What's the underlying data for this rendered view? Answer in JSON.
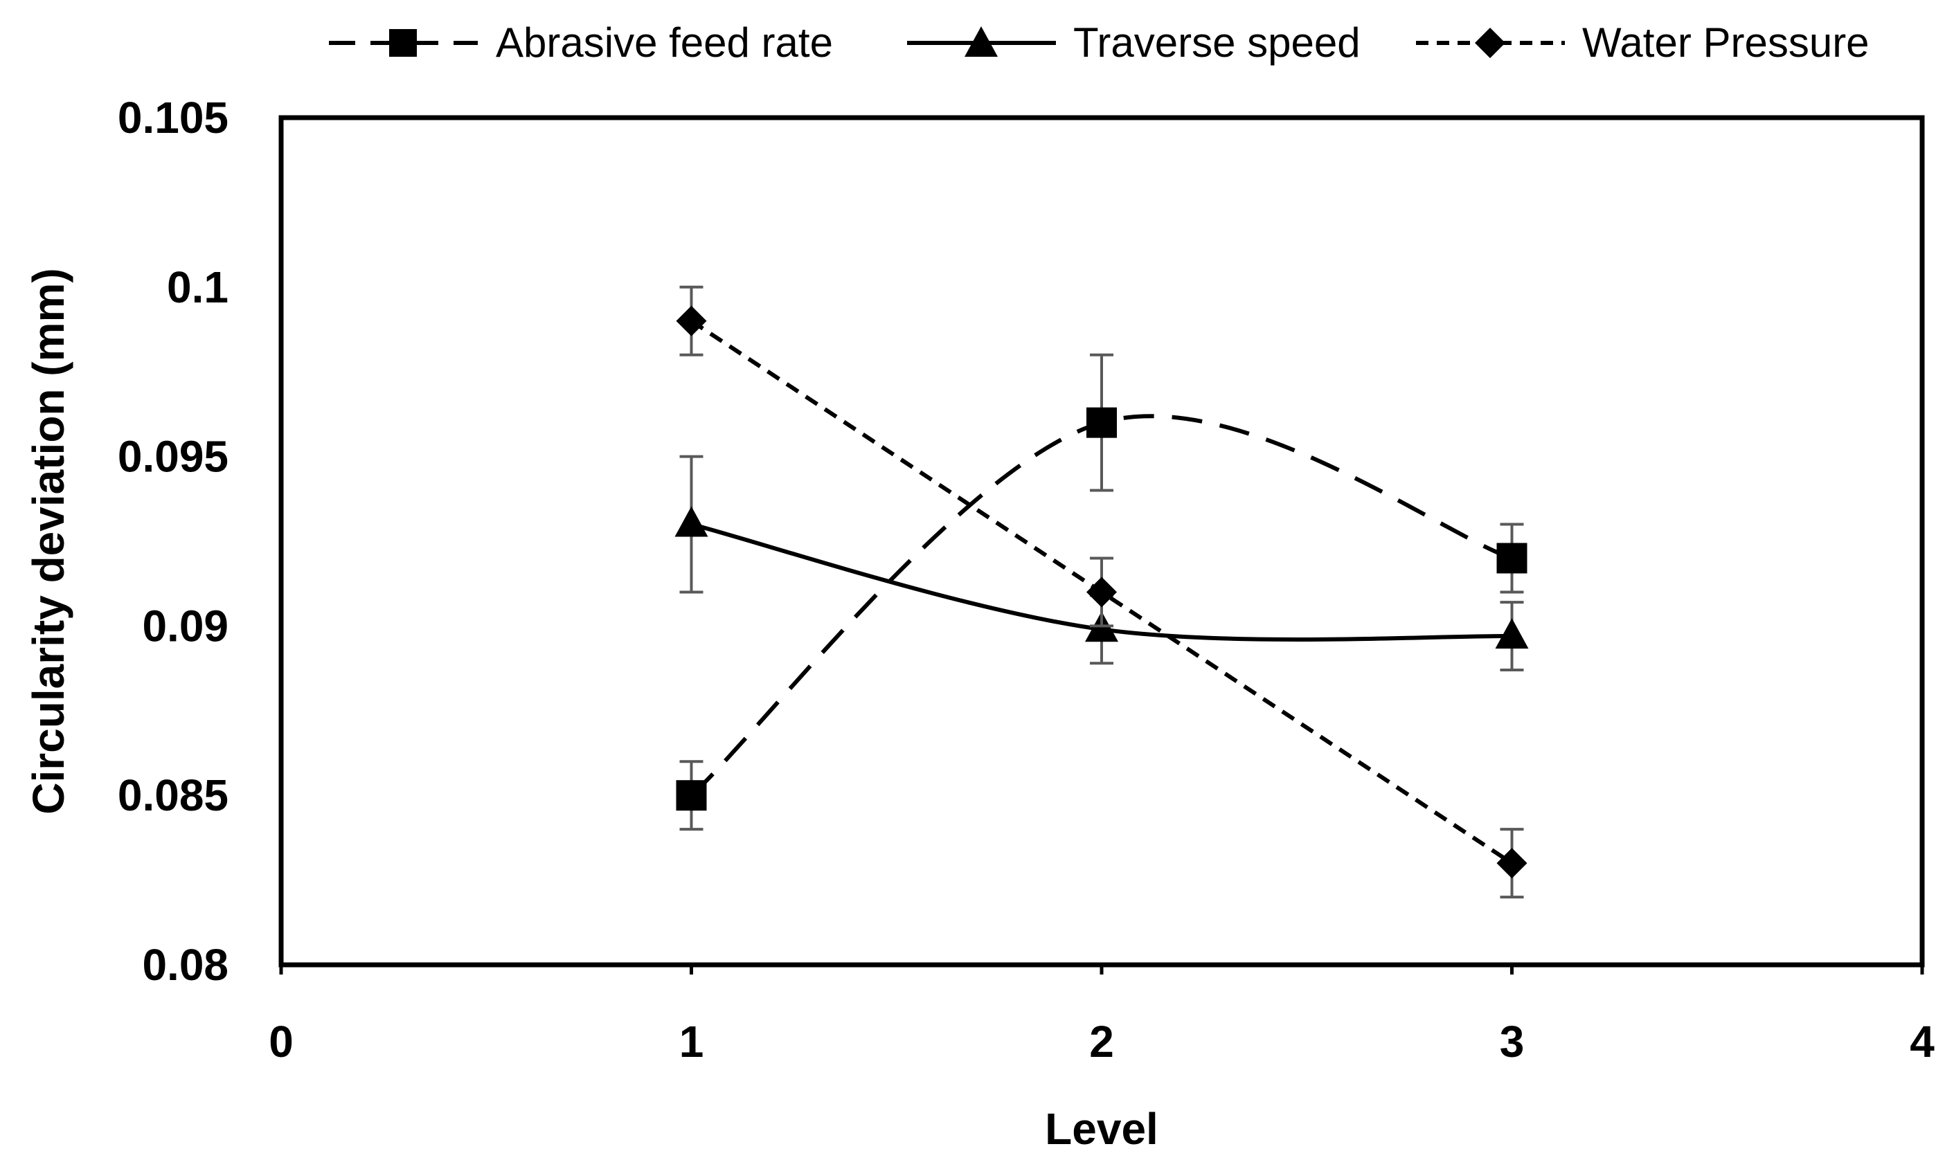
{
  "chart_data": {
    "type": "line",
    "title": "",
    "xlabel": "Level",
    "ylabel": "Circularity deviation  (mm)",
    "xlim": [
      0,
      4
    ],
    "ylim": [
      0.08,
      0.105
    ],
    "x_ticks": [
      0,
      1,
      2,
      3,
      4
    ],
    "x_tick_labels": [
      "0",
      "1",
      "2",
      "3",
      "4"
    ],
    "y_ticks": [
      0.08,
      0.085,
      0.09,
      0.095,
      0.1,
      0.105
    ],
    "y_tick_labels": [
      "0.08",
      "0.085",
      "0.09",
      "0.095",
      "0.1",
      "0.105"
    ],
    "grid": false,
    "legend_position": "top",
    "series": [
      {
        "name": "Abrasive feed rate",
        "marker": "square",
        "line_style": "long-dash",
        "smooth": true,
        "x": [
          1,
          2,
          3
        ],
        "values": [
          0.085,
          0.096,
          0.092
        ],
        "error": [
          0.001,
          0.002,
          0.001
        ]
      },
      {
        "name": "Traverse speed",
        "marker": "triangle",
        "line_style": "solid",
        "smooth": true,
        "x": [
          1,
          2,
          3
        ],
        "values": [
          0.093,
          0.0899,
          0.0897
        ],
        "error": [
          0.002,
          0.001,
          0.001
        ]
      },
      {
        "name": "Water Pressure",
        "marker": "diamond",
        "line_style": "short-dash",
        "smooth": false,
        "x": [
          1,
          2,
          3
        ],
        "values": [
          0.099,
          0.091,
          0.083
        ],
        "error": [
          0.001,
          0.001,
          0.001
        ]
      }
    ],
    "colors": {
      "line": "#000000",
      "error_bar": "#595959",
      "axis": "#000000",
      "background": "#ffffff"
    }
  }
}
